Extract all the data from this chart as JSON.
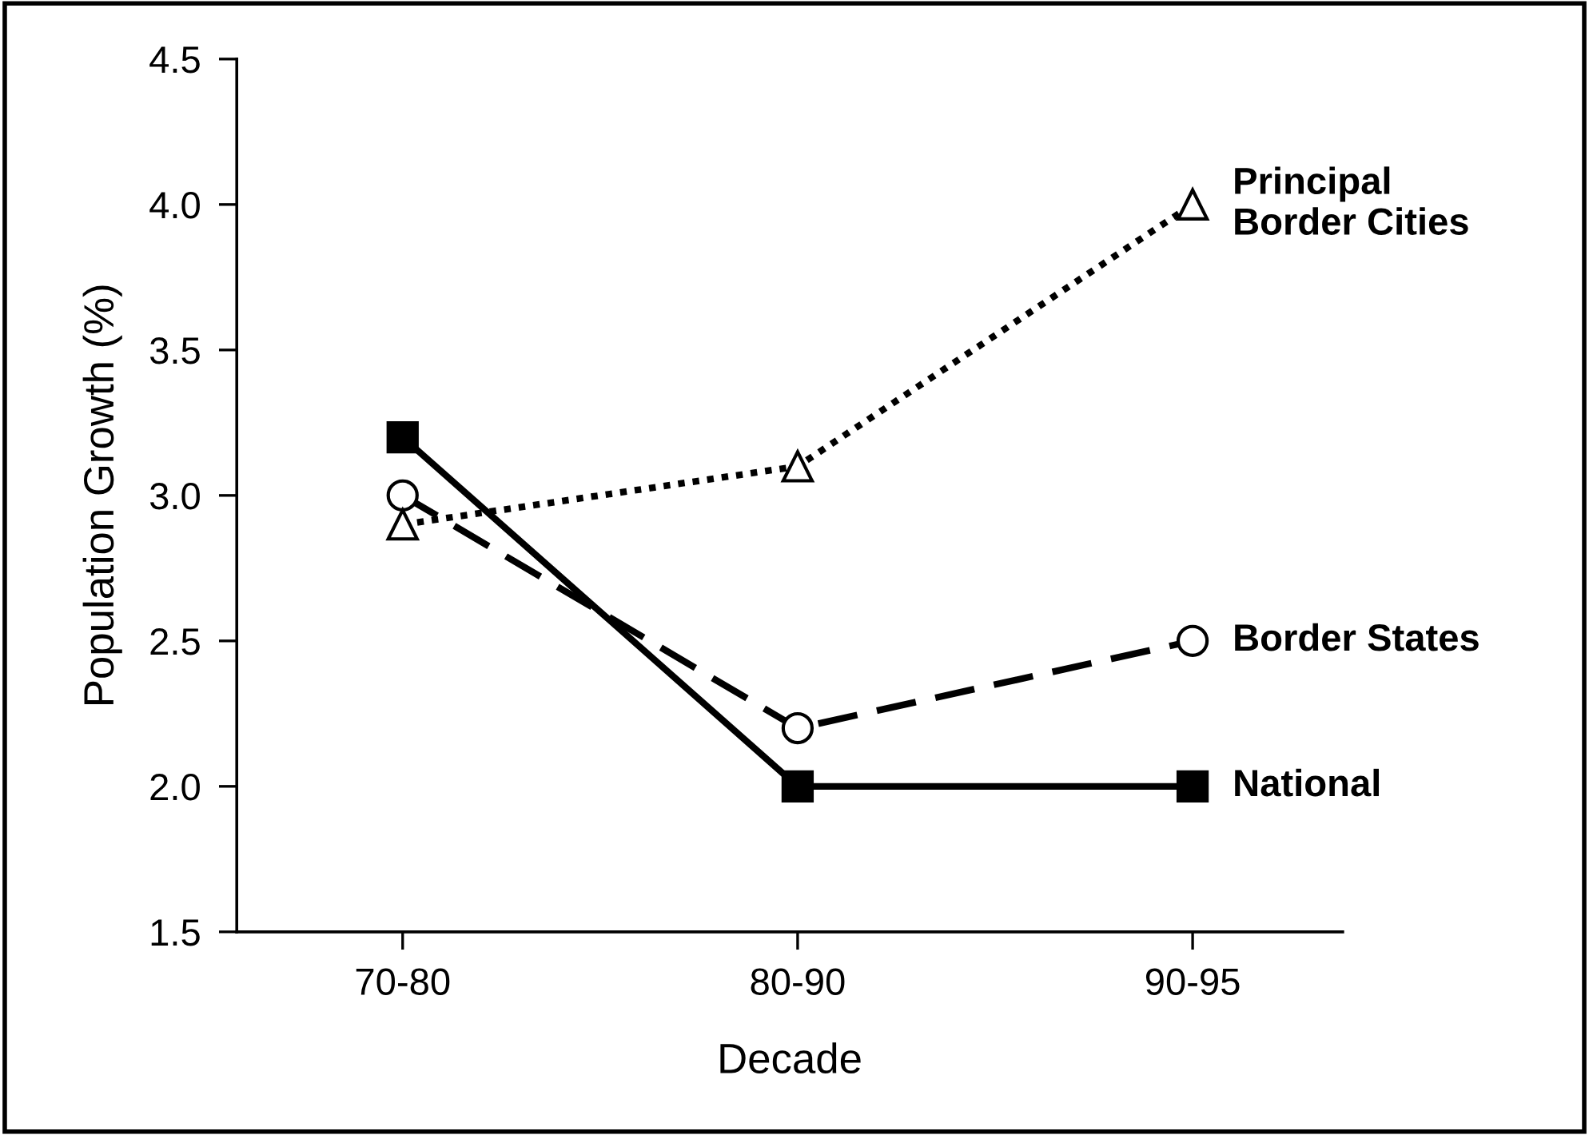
{
  "chart_data": {
    "type": "line",
    "xlabel": "Decade",
    "ylabel": "Population Growth (%)",
    "categories": [
      "70-80",
      "80-90",
      "90-95"
    ],
    "ylim": [
      1.5,
      4.5
    ],
    "yticks": [
      1.5,
      {
        "value": 2,
        "label": "2.0"
      },
      2.5,
      {
        "value": 3,
        "label": "3.0"
      },
      3.5,
      {
        "value": 4,
        "label": "4.0"
      },
      4.5
    ],
    "grid": false,
    "legend": false,
    "series": [
      {
        "name": "National",
        "color": "#000000",
        "marker": "square",
        "line_style": "solid",
        "values": [
          3.2,
          2.0,
          2.0
        ]
      },
      {
        "name": "Border States",
        "color": "#000000",
        "marker": "circle",
        "line_style": "dashed",
        "values": [
          3.0,
          2.2,
          2.5
        ]
      },
      {
        "name": "Principal\nBorder Cities",
        "color": "#000000",
        "marker": "triangle",
        "line_style": "dotted",
        "values": [
          2.9,
          3.1,
          4.0
        ]
      }
    ]
  }
}
